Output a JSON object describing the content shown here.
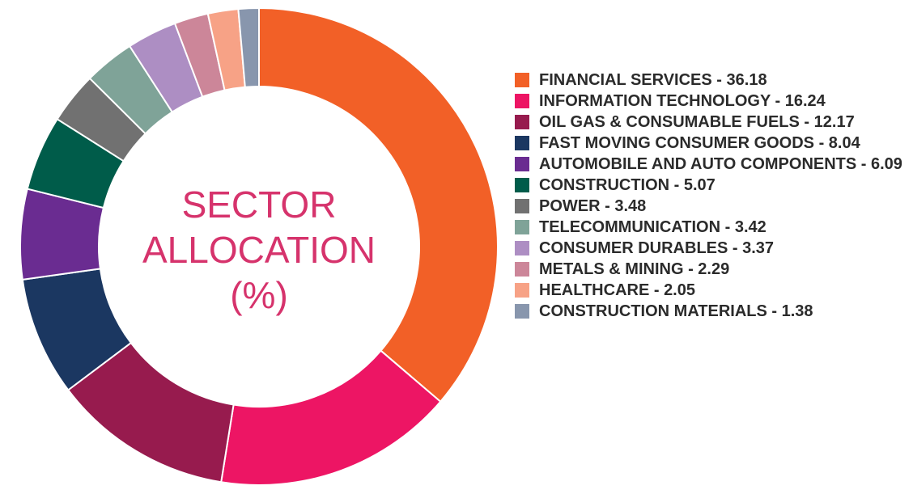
{
  "chart_data": {
    "type": "pie",
    "title": "SECTOR ALLOCATION (%)",
    "title_lines": [
      "SECTOR",
      "ALLOCATION",
      "(%)"
    ],
    "donut": true,
    "legend_position": "right",
    "series": [
      {
        "name": "FINANCIAL SERVICES",
        "value": 36.18,
        "label": "FINANCIAL SERVICES - 36.18",
        "color": "#f26027"
      },
      {
        "name": "INFORMATION TECHNOLOGY",
        "value": 16.24,
        "label": "INFORMATION TECHNOLOGY - 16.24",
        "color": "#ed1564"
      },
      {
        "name": "OIL GAS & CONSUMABLE FUELS",
        "value": 12.17,
        "label": "OIL GAS & CONSUMABLE FUELS - 12.17",
        "color": "#971b4e"
      },
      {
        "name": "FAST MOVING CONSUMER GOODS",
        "value": 8.04,
        "label": "FAST MOVING CONSUMER GOODS - 8.04",
        "color": "#1b3761"
      },
      {
        "name": "AUTOMOBILE AND AUTO COMPONENTS",
        "value": 6.09,
        "label": "AUTOMOBILE AND AUTO COMPONENTS - 6.09",
        "color": "#6a2c91"
      },
      {
        "name": "CONSTRUCTION",
        "value": 5.07,
        "label": "CONSTRUCTION - 5.07",
        "color": "#005c4a"
      },
      {
        "name": "POWER",
        "value": 3.48,
        "label": "POWER - 3.48",
        "color": "#717171"
      },
      {
        "name": "TELECOMMUNICATION",
        "value": 3.42,
        "label": "TELECOMMUNICATION - 3.42",
        "color": "#7fa398"
      },
      {
        "name": "CONSUMER DURABLES",
        "value": 3.37,
        "label": "CONSUMER DURABLES - 3.37",
        "color": "#ad8ec3"
      },
      {
        "name": "METALS & MINING",
        "value": 2.29,
        "label": "METALS & MINING - 2.29",
        "color": "#cc8699"
      },
      {
        "name": "HEALTHCARE",
        "value": 2.05,
        "label": "HEALTHCARE - 2.05",
        "color": "#f7a286"
      },
      {
        "name": "CONSTRUCTION MATERIALS",
        "value": 1.38,
        "label": "CONSTRUCTION MATERIALS - 1.38",
        "color": "#8896ad"
      }
    ]
  }
}
